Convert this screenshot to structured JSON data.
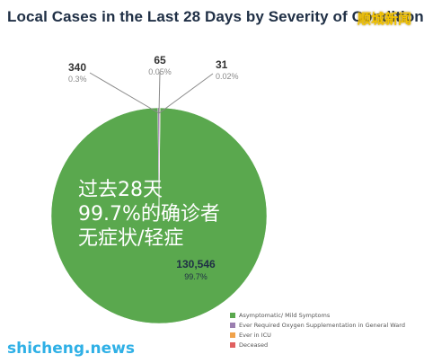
{
  "title": "Local Cases in the Last 28 Days by Severity of Condition",
  "watermark_top": "顺城新闻",
  "watermark_bottom": "shicheng.news",
  "overlay_lines": [
    "过去28天",
    "99.7%的确诊者",
    "无症状/轻症"
  ],
  "chart_data": {
    "type": "pie",
    "slices": [
      {
        "label": "Asymptomatic/ Mild Symptoms",
        "value": 130546,
        "value_label": "130,546",
        "percent_label": "99.7%",
        "color": "#5aa84e"
      },
      {
        "label": "Ever Required Oxygen Supplementation in General Ward",
        "value": 340,
        "value_label": "340",
        "percent_label": "0.3%",
        "color": "#9b7fb0"
      },
      {
        "label": "Ever in ICU",
        "value": 65,
        "value_label": "65",
        "percent_label": "0.05%",
        "color": "#f0a24a"
      },
      {
        "label": "Deceased",
        "value": 31,
        "value_label": "31",
        "percent_label": "0.02%",
        "color": "#e06060"
      }
    ],
    "legend": "bottom-right"
  }
}
